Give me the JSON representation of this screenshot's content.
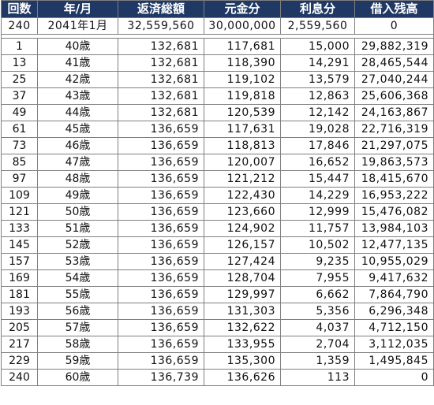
{
  "headers": {
    "count": "回数",
    "year_month": "年/月",
    "total": "返済総額",
    "principal": "元金分",
    "interest": "利息分",
    "balance": "借入残高"
  },
  "summary": {
    "count": "240",
    "year_month": "2041年1月",
    "total": "32,559,560",
    "principal": "30,000,000",
    "interest": "2,559,560",
    "balance": "0"
  },
  "rows": [
    {
      "count": "1",
      "age": "40歳",
      "total": "132,681",
      "principal": "117,681",
      "interest": "15,000",
      "balance": "29,882,319"
    },
    {
      "count": "13",
      "age": "41歳",
      "total": "132,681",
      "principal": "118,390",
      "interest": "14,291",
      "balance": "28,465,544"
    },
    {
      "count": "25",
      "age": "42歳",
      "total": "132,681",
      "principal": "119,102",
      "interest": "13,579",
      "balance": "27,040,244"
    },
    {
      "count": "37",
      "age": "43歳",
      "total": "132,681",
      "principal": "119,818",
      "interest": "12,863",
      "balance": "25,606,368"
    },
    {
      "count": "49",
      "age": "44歳",
      "total": "132,681",
      "principal": "120,539",
      "interest": "12,142",
      "balance": "24,163,867"
    },
    {
      "count": "61",
      "age": "45歳",
      "total": "136,659",
      "principal": "117,631",
      "interest": "19,028",
      "balance": "22,716,319"
    },
    {
      "count": "73",
      "age": "46歳",
      "total": "136,659",
      "principal": "118,813",
      "interest": "17,846",
      "balance": "21,297,075"
    },
    {
      "count": "85",
      "age": "47歳",
      "total": "136,659",
      "principal": "120,007",
      "interest": "16,652",
      "balance": "19,863,573"
    },
    {
      "count": "97",
      "age": "48歳",
      "total": "136,659",
      "principal": "121,212",
      "interest": "15,447",
      "balance": "18,415,670"
    },
    {
      "count": "109",
      "age": "49歳",
      "total": "136,659",
      "principal": "122,430",
      "interest": "14,229",
      "balance": "16,953,222"
    },
    {
      "count": "121",
      "age": "50歳",
      "total": "136,659",
      "principal": "123,660",
      "interest": "12,999",
      "balance": "15,476,082"
    },
    {
      "count": "133",
      "age": "51歳",
      "total": "136,659",
      "principal": "124,902",
      "interest": "11,757",
      "balance": "13,984,103"
    },
    {
      "count": "145",
      "age": "52歳",
      "total": "136,659",
      "principal": "126,157",
      "interest": "10,502",
      "balance": "12,477,135"
    },
    {
      "count": "157",
      "age": "53歳",
      "total": "136,659",
      "principal": "127,424",
      "interest": "9,235",
      "balance": "10,955,029"
    },
    {
      "count": "169",
      "age": "54歳",
      "total": "136,659",
      "principal": "128,704",
      "interest": "7,955",
      "balance": "9,417,632"
    },
    {
      "count": "181",
      "age": "55歳",
      "total": "136,659",
      "principal": "129,997",
      "interest": "6,662",
      "balance": "7,864,790"
    },
    {
      "count": "193",
      "age": "56歳",
      "total": "136,659",
      "principal": "131,303",
      "interest": "5,356",
      "balance": "6,296,348"
    },
    {
      "count": "205",
      "age": "57歳",
      "total": "136,659",
      "principal": "132,622",
      "interest": "4,037",
      "balance": "4,712,150"
    },
    {
      "count": "217",
      "age": "58歳",
      "total": "136,659",
      "principal": "133,955",
      "interest": "2,704",
      "balance": "3,112,035"
    },
    {
      "count": "229",
      "age": "59歳",
      "total": "136,659",
      "principal": "135,300",
      "interest": "1,359",
      "balance": "1,495,845"
    },
    {
      "count": "240",
      "age": "60歳",
      "total": "136,739",
      "principal": "136,626",
      "interest": "113",
      "balance": "0"
    }
  ],
  "colors": {
    "header_bg": "#1f3864",
    "header_text": "#ffffff",
    "border": "#7f7f7f"
  }
}
